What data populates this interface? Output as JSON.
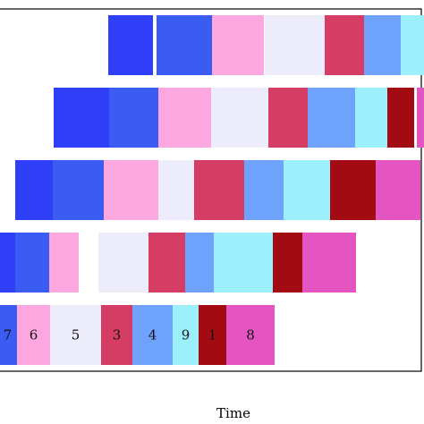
{
  "chart_data": {
    "type": "gantt",
    "title": "",
    "xlabel": "Time",
    "ylabel": "",
    "grid": false,
    "legend": "none",
    "xlim": [
      -2,
      475
    ],
    "colors": {
      "1": "#a30b12",
      "2": "#2e3ff7",
      "3": "#d63d64",
      "4": "#6fa2fd",
      "5": "#ececfb",
      "6": "#fda7e0",
      "7": "#3b5cf3",
      "8": "#e455c2",
      "9": "#9bf0fc"
    },
    "rows": [
      {
        "segments": [
          {
            "task": "2",
            "start": 121,
            "end": 171
          },
          {
            "task": "7",
            "start": 175,
            "end": 237
          },
          {
            "task": "6",
            "start": 237,
            "end": 295
          },
          {
            "task": "5",
            "start": 296,
            "end": 363
          },
          {
            "task": "3",
            "start": 363,
            "end": 407
          },
          {
            "task": "4",
            "start": 407,
            "end": 448
          },
          {
            "task": "9",
            "start": 448,
            "end": 475
          }
        ]
      },
      {
        "segments": [
          {
            "task": "2",
            "start": 60,
            "end": 122
          },
          {
            "task": "7",
            "start": 122,
            "end": 177
          },
          {
            "task": "6",
            "start": 177,
            "end": 236
          },
          {
            "task": "5",
            "start": 236,
            "end": 300
          },
          {
            "task": "3",
            "start": 300,
            "end": 344
          },
          {
            "task": "4",
            "start": 344,
            "end": 397
          },
          {
            "task": "9",
            "start": 397,
            "end": 433
          },
          {
            "task": "1",
            "start": 433,
            "end": 463
          },
          {
            "task": "8",
            "start": 466,
            "end": 475
          }
        ]
      },
      {
        "segments": [
          {
            "task": "2",
            "start": 17,
            "end": 59
          },
          {
            "task": "7",
            "start": 59,
            "end": 116
          },
          {
            "task": "6",
            "start": 116,
            "end": 177
          },
          {
            "task": "5",
            "start": 177,
            "end": 217
          },
          {
            "task": "3",
            "start": 217,
            "end": 273
          },
          {
            "task": "4",
            "start": 273,
            "end": 317
          },
          {
            "task": "9",
            "start": 317,
            "end": 369
          },
          {
            "task": "1",
            "start": 369,
            "end": 420
          },
          {
            "task": "8",
            "start": 420,
            "end": 470
          }
        ]
      },
      {
        "segments": [
          {
            "task": "2",
            "start": -2,
            "end": 17
          },
          {
            "task": "7",
            "start": 17,
            "end": 55
          },
          {
            "task": "6",
            "start": 55,
            "end": 88
          },
          {
            "task": "5",
            "start": 110,
            "end": 166
          },
          {
            "task": "3",
            "start": 166,
            "end": 207
          },
          {
            "task": "4",
            "start": 207,
            "end": 239
          },
          {
            "task": "9",
            "start": 239,
            "end": 305
          },
          {
            "task": "1",
            "start": 305,
            "end": 338
          },
          {
            "task": "8",
            "start": 338,
            "end": 398
          }
        ]
      },
      {
        "segments": [
          {
            "task": "7",
            "start": -2,
            "end": 19,
            "label": "7"
          },
          {
            "task": "6",
            "start": 19,
            "end": 56,
            "label": "6"
          },
          {
            "task": "5",
            "start": 56,
            "end": 113,
            "label": "5"
          },
          {
            "task": "3",
            "start": 113,
            "end": 148,
            "label": "3"
          },
          {
            "task": "4",
            "start": 148,
            "end": 193,
            "label": "4"
          },
          {
            "task": "9",
            "start": 193,
            "end": 222,
            "label": "9"
          },
          {
            "task": "1",
            "start": 222,
            "end": 253,
            "label": "1"
          },
          {
            "task": "8",
            "start": 253,
            "end": 307,
            "label": "8"
          }
        ]
      }
    ]
  }
}
